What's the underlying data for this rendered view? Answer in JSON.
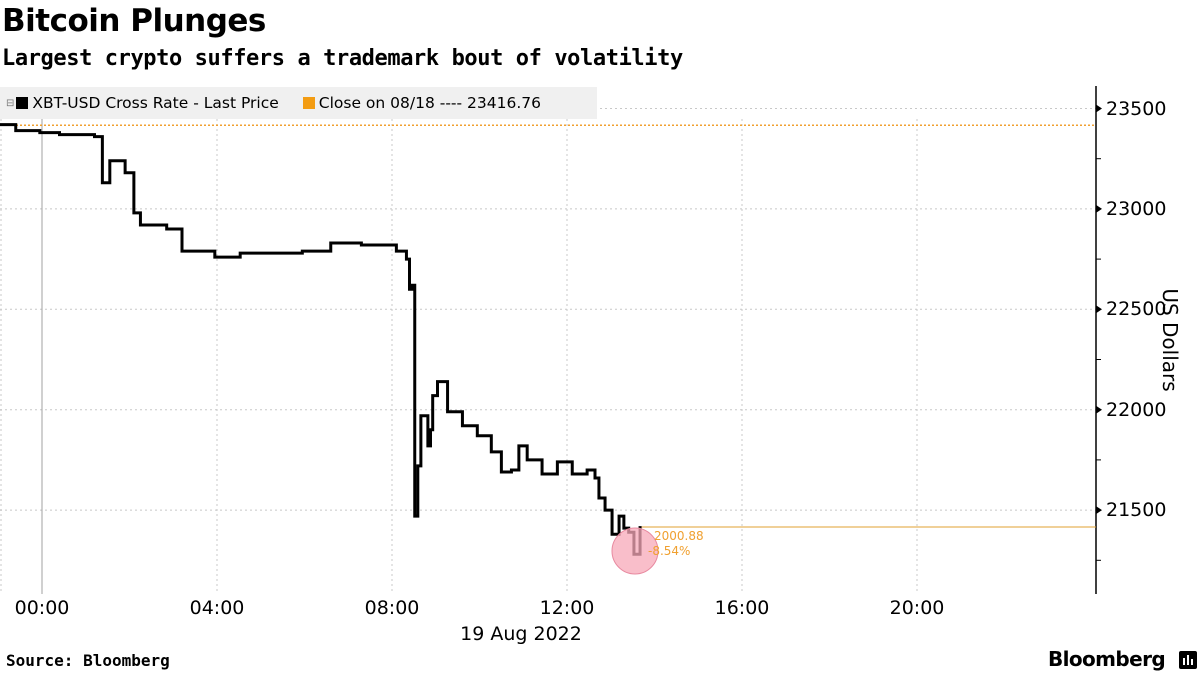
{
  "header": {
    "title": "Bitcoin Plunges",
    "subtitle": "Largest crypto suffers a trademark bout of volatility"
  },
  "legend": {
    "items": [
      {
        "label": "XBT-USD Cross Rate - Last Price",
        "color": "#000000"
      },
      {
        "label": "Close on 08/18 ---- 23416.76",
        "color": "#f39c12"
      }
    ]
  },
  "annotation": {
    "value": "2000.88",
    "change": "-8.54%",
    "highlight_color": "#f7a8b8"
  },
  "footer": {
    "source": "Source: Bloomberg",
    "brand": "Bloomberg"
  },
  "chart_data": {
    "type": "line",
    "title": "Bitcoin Plunges",
    "subtitle": "Largest crypto suffers a trademark bout of volatility",
    "xlabel": "19 Aug 2022",
    "ylabel": "US Dollars",
    "x_ticks": [
      "00:00",
      "04:00",
      "08:00",
      "12:00",
      "16:00",
      "20:00"
    ],
    "x_date_label": "19 Aug 2022",
    "y_ticks": [
      21500,
      22000,
      22500,
      23000,
      23500
    ],
    "ylim": [
      21100,
      23650
    ],
    "grid": true,
    "y_axis_position": "right",
    "legend_position": "top-left",
    "reference_line": {
      "label": "Close on 08/18",
      "value": 23416.76,
      "color": "#f39c12",
      "style": "dotted"
    },
    "last_value_line": {
      "value": 21415.88,
      "color": "#e0a030"
    },
    "annotation": {
      "text": [
        "2000.88",
        "-8.54%"
      ],
      "time": "13:35"
    },
    "series": [
      {
        "name": "XBT-USD Cross Rate - Last Price",
        "color": "#000000",
        "x_hours": [
          -0.96,
          -0.6,
          -0.05,
          0.4,
          1.2,
          1.38,
          1.55,
          1.9,
          2.1,
          2.25,
          2.85,
          3.2,
          3.95,
          4.53,
          5.95,
          6.6,
          7.3,
          8.1,
          8.33,
          8.4,
          8.46,
          8.52,
          8.59,
          8.66,
          8.82,
          8.88,
          8.93,
          9.04,
          9.27,
          9.61,
          9.95,
          10.27,
          10.5,
          10.73,
          10.9,
          11.09,
          11.43,
          11.78,
          12.12,
          12.46,
          12.64,
          12.73,
          12.87,
          13.03,
          13.19,
          13.3,
          13.41,
          13.53,
          13.67
        ],
        "values": [
          23420,
          23390,
          23380,
          23370,
          23360,
          23130,
          23240,
          23180,
          22980,
          22920,
          22900,
          22790,
          22760,
          22780,
          22790,
          22830,
          22820,
          22790,
          22750,
          22600,
          22620,
          21470,
          21720,
          21970,
          21820,
          21900,
          22070,
          22140,
          21990,
          21920,
          21870,
          21790,
          21690,
          21700,
          21820,
          21750,
          21680,
          21740,
          21680,
          21700,
          21660,
          21560,
          21500,
          21380,
          21470,
          21410,
          21390,
          21280,
          21420
        ]
      }
    ]
  }
}
